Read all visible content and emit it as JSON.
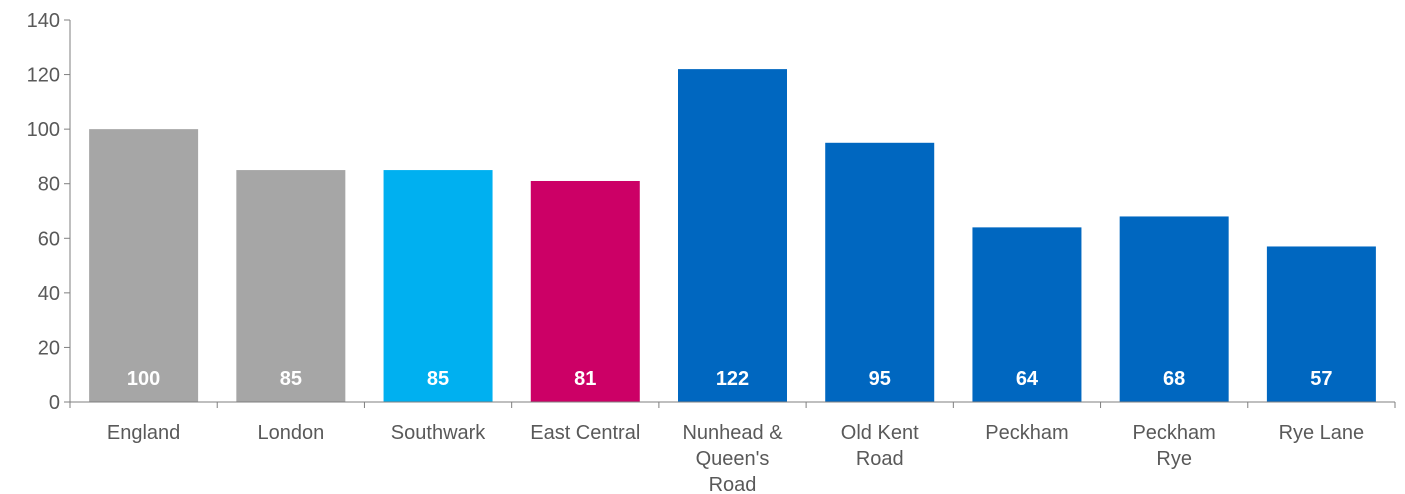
{
  "chart_data": {
    "type": "bar",
    "title": "",
    "xlabel": "",
    "ylabel": "",
    "ylim": [
      0,
      140
    ],
    "yticks": [
      0,
      20,
      40,
      60,
      80,
      100,
      120,
      140
    ],
    "grid": false,
    "legend": "none",
    "categories": [
      [
        "England"
      ],
      [
        "London"
      ],
      [
        "Southwark"
      ],
      [
        "East Central"
      ],
      [
        "Nunhead &",
        "Queen's",
        "Road"
      ],
      [
        "Old Kent",
        "Road"
      ],
      [
        "Peckham"
      ],
      [
        "Peckham",
        "Rye"
      ],
      [
        "Rye Lane"
      ]
    ],
    "values": [
      100,
      85,
      85,
      81,
      122,
      95,
      64,
      68,
      57
    ],
    "data_labels": [
      "100",
      "85",
      "85",
      "81",
      "122",
      "95",
      "64",
      "68",
      "57"
    ],
    "bar_colors": [
      "#a6a6a6",
      "#a6a6a6",
      "#00b0f0",
      "#cc0066",
      "#0067c0",
      "#0067c0",
      "#0067c0",
      "#0067c0",
      "#0067c0"
    ],
    "axis_color": "#7f7f7f",
    "text_color": "#595959"
  }
}
